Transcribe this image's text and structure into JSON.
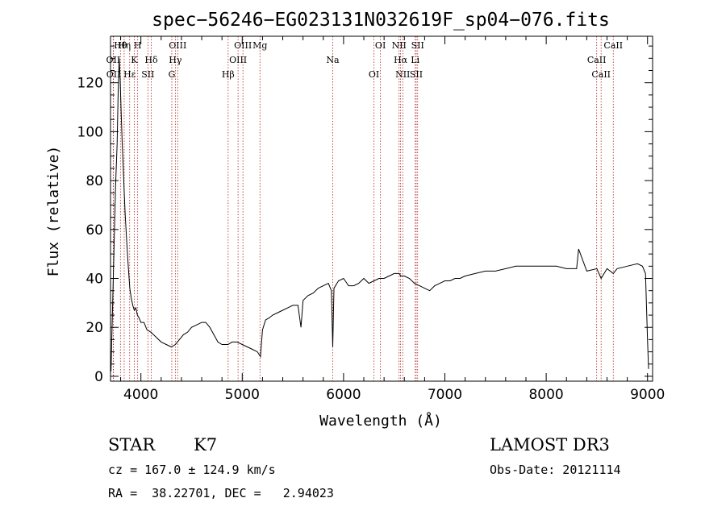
{
  "chart_data": {
    "type": "line",
    "title": "spec−56246−EG023131N032619F_sp04−076.fits",
    "xlabel": "Wavelength (Å)",
    "ylabel": "Flux (relative)",
    "xlim": [
      3700,
      9050
    ],
    "ylim": [
      -2,
      139
    ],
    "xticks": [
      4000,
      5000,
      6000,
      7000,
      8000,
      9000
    ],
    "yticks": [
      0,
      20,
      40,
      60,
      80,
      100,
      120
    ],
    "xtick_labels": [
      "4000",
      "5000",
      "6000",
      "7000",
      "8000",
      "9000"
    ],
    "ytick_labels": [
      "0",
      "20",
      "40",
      "60",
      "80",
      "100",
      "120"
    ],
    "series": [
      {
        "name": "flux",
        "x": [
          3705,
          3730,
          3750,
          3765,
          3775,
          3785,
          3795,
          3805,
          3815,
          3825,
          3835,
          3845,
          3860,
          3875,
          3890,
          3905,
          3920,
          3935,
          3950,
          3965,
          3980,
          4000,
          4030,
          4060,
          4100,
          4150,
          4200,
          4250,
          4300,
          4340,
          4380,
          4420,
          4460,
          4500,
          4550,
          4600,
          4640,
          4680,
          4720,
          4760,
          4800,
          4860,
          4900,
          4950,
          5000,
          5050,
          5100,
          5150,
          5180,
          5200,
          5230,
          5270,
          5300,
          5350,
          5400,
          5450,
          5500,
          5550,
          5580,
          5600,
          5650,
          5700,
          5750,
          5800,
          5850,
          5880,
          5893,
          5905,
          5950,
          6000,
          6050,
          6100,
          6150,
          6200,
          6250,
          6300,
          6350,
          6400,
          6450,
          6500,
          6550,
          6563,
          6600,
          6650,
          6700,
          6750,
          6800,
          6850,
          6900,
          6950,
          7000,
          7050,
          7100,
          7150,
          7200,
          7300,
          7400,
          7500,
          7600,
          7700,
          7800,
          7900,
          8000,
          8100,
          8200,
          8300,
          8320,
          8400,
          8500,
          8542,
          8600,
          8662,
          8700,
          8800,
          8900,
          8950,
          8980,
          9000,
          9010
        ],
        "values": [
          2,
          45,
          78,
          95,
          115,
          130,
          122,
          108,
          96,
          86,
          75,
          66,
          55,
          45,
          36,
          32,
          29,
          27,
          28,
          25,
          24,
          22,
          22,
          19,
          18,
          16,
          14,
          13,
          12,
          13,
          15,
          17,
          18,
          20,
          21,
          22,
          22,
          20,
          17,
          14,
          13,
          13,
          14,
          14,
          13,
          12,
          11,
          10,
          8,
          19,
          23,
          24,
          25,
          26,
          27,
          28,
          29,
          29,
          20,
          31,
          33,
          34,
          36,
          37,
          38,
          35,
          12,
          36,
          39,
          40,
          37,
          37,
          38,
          40,
          38,
          39,
          40,
          40,
          41,
          42,
          42,
          41,
          41,
          40,
          38,
          37,
          36,
          35,
          37,
          38,
          39,
          39,
          40,
          40,
          41,
          42,
          43,
          43,
          44,
          45,
          45,
          45,
          45,
          45,
          44,
          44,
          52,
          43,
          44,
          40,
          44,
          42,
          44,
          45,
          46,
          45,
          42,
          15,
          3
        ]
      }
    ],
    "lines": [
      {
        "label": "Hθ",
        "x": 3798
      },
      {
        "label": "OII",
        "x": 3727
      },
      {
        "label": "OII",
        "x": 3729
      },
      {
        "label": "Hη",
        "x": 3835
      },
      {
        "label": "K",
        "x": 3934
      },
      {
        "label": "Hε",
        "x": 3889
      },
      {
        "label": "H",
        "x": 3968
      },
      {
        "label": "Hδ",
        "x": 4102
      },
      {
        "label": "SII",
        "x": 4069
      },
      {
        "label": "OIII",
        "x": 4363
      },
      {
        "label": "Hγ",
        "x": 4340
      },
      {
        "label": "G",
        "x": 4305
      },
      {
        "label": "OIII",
        "x": 5007
      },
      {
        "label": "OIII",
        "x": 4959
      },
      {
        "label": "Hβ",
        "x": 4861
      },
      {
        "label": "Mg",
        "x": 5175
      },
      {
        "label": "Na",
        "x": 5893
      },
      {
        "label": "OI",
        "x": 6300
      },
      {
        "label": "OI",
        "x": 6364
      },
      {
        "label": "Hα",
        "x": 6563
      },
      {
        "label": "SII",
        "x": 6717
      },
      {
        "label": "NII",
        "x": 6548
      },
      {
        "label": "Li",
        "x": 6707
      },
      {
        "label": "NII",
        "x": 6584
      },
      {
        "label": "SII",
        "x": 6731
      },
      {
        "label": "CaII",
        "x": 8498
      },
      {
        "label": "CaII",
        "x": 8542
      },
      {
        "label": "CaII",
        "x": 8662
      }
    ]
  },
  "info": {
    "object_class": "STAR",
    "subclass": "K7",
    "survey": "LAMOST DR3",
    "velocity": "cz = 167.0 ± 124.9 km/s",
    "obs_date": "Obs-Date: 20121114",
    "coords": "RA =  38.22701, DEC =   2.94023"
  }
}
